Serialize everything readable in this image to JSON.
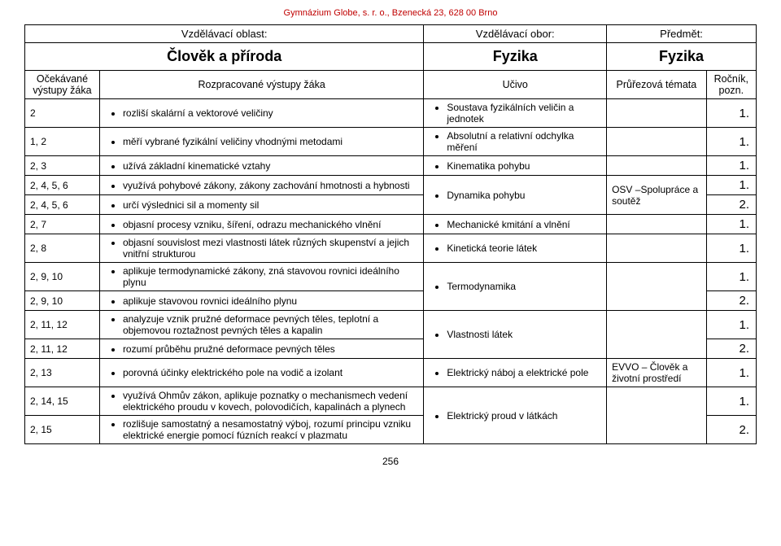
{
  "org_header": "Gymnázium Globe, s. r. o., Bzenecká 23, 628 00 Brno",
  "org_header_color": "#c00000",
  "labels": {
    "area": "Vzdělávací oblast:",
    "field": "Vzdělávací obor:",
    "subject": "Předmět:",
    "outputs": "Očekávané výstupy žáka",
    "elaborated": "Rozpracované výstupy žáka",
    "content": "Učivo",
    "cross": "Průřezová témata",
    "year": "Ročník, pozn."
  },
  "domain": {
    "area": "Člověk a příroda",
    "field": "Fyzika",
    "subject": "Fyzika"
  },
  "rows": [
    {
      "out": "2",
      "elab": "rozliší skalární a vektorové veličiny",
      "content": "Soustava fyzikálních veličin a jednotek",
      "cross": "",
      "year": "1."
    },
    {
      "out": "1, 2",
      "elab": "měří vybrané fyzikální veličiny vhodnými metodami",
      "content": "Absolutní a relativní odchylka měření",
      "cross": "",
      "year": "1."
    },
    {
      "out": "2, 3",
      "elab": "užívá základní kinematické vztahy",
      "content": "Kinematika pohybu",
      "cross": "",
      "year": "1."
    },
    {
      "out": "2, 4, 5, 6",
      "elab": "využívá pohybové zákony, zákony zachování hmotnosti a hybnosti",
      "content": "Dynamika pohybu",
      "cross": "OSV –Spolupráce a soutěž",
      "year": "1.",
      "content_rowspan": 2,
      "cross_rowspan": 2
    },
    {
      "out": "2, 4, 5, 6",
      "elab": "určí výslednici sil a momenty sil",
      "year": "2."
    },
    {
      "out": "2, 7",
      "elab": "objasní procesy vzniku, šíření, odrazu mechanického vlnění",
      "content": "Mechanické kmitání a vlnění",
      "cross": "",
      "year": "1."
    },
    {
      "out": "2, 8",
      "elab": "objasní souvislost mezi vlastnosti látek různých skupenství a jejich vnitřní strukturou",
      "content": "Kinetická teorie látek",
      "cross": "",
      "year": "1."
    },
    {
      "out": "2, 9, 10",
      "elab": "aplikuje termodynamické zákony, zná stavovou rovnici ideálního plynu",
      "content": "Termodynamika",
      "cross": "",
      "year": "1.",
      "content_rowspan": 2,
      "cross_rowspan": 2
    },
    {
      "out": "2, 9, 10",
      "elab": "aplikuje stavovou rovnici ideálního plynu",
      "year": "2."
    },
    {
      "out": "2, 11, 12",
      "elab": "analyzuje vznik pružné deformace pevných těles, teplotní a objemovou roztažnost pevných těles a kapalin",
      "content": "Vlastnosti látek",
      "cross": "",
      "year": "1.",
      "content_rowspan": 2,
      "cross_rowspan": 2
    },
    {
      "out": "2, 11, 12",
      "elab": "rozumí průběhu pružné deformace pevných těles",
      "year": "2."
    },
    {
      "out": "2, 13",
      "elab": "porovná účinky elektrického pole na vodič a izolant",
      "content": "Elektrický náboj a elektrické pole",
      "cross": "EVVO – Člověk a životní prostředí",
      "year": "1."
    },
    {
      "out": "2, 14, 15",
      "elab": "využívá Ohmův zákon, aplikuje poznatky o mechanismech vedení elektrického proudu v kovech, polovodičích, kapalinách a plynech",
      "content": "Elektrický proud v látkách",
      "cross": "",
      "year": "1.",
      "content_rowspan": 2,
      "cross_rowspan": 2
    },
    {
      "out": "2, 15",
      "elab": "rozlišuje samostatný a nesamostatný výboj, rozumí principu vzniku elektrické energie pomocí fúzních reakcí v plazmatu",
      "year": "2."
    }
  ],
  "page_number": "256"
}
